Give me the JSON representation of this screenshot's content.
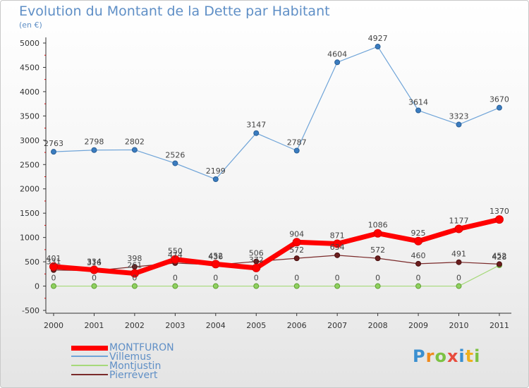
{
  "title": "Evolution du Montant de la Dette par Habitant",
  "subtitle": "(en €)",
  "logo": "Proxiti",
  "chart_data": {
    "type": "line",
    "x": [
      "2000",
      "2001",
      "2002",
      "2003",
      "2004",
      "2005",
      "2006",
      "2007",
      "2008",
      "2009",
      "2010",
      "2011"
    ],
    "ylim": [
      -500,
      5000
    ],
    "yticks": [
      -500,
      0,
      500,
      1000,
      1500,
      2000,
      2500,
      3000,
      3500,
      4000,
      4500,
      5000
    ],
    "grid": false,
    "legend_position": "bottom-left",
    "series": [
      {
        "name": "MONTFURON",
        "color": "#ff0000",
        "values": [
          401,
          334,
          261,
          550,
          452,
          372,
          904,
          871,
          1086,
          925,
          1177,
          1370
        ]
      },
      {
        "name": "Villemus",
        "color": "#6fa4d8",
        "values": [
          2763,
          2798,
          2802,
          2526,
          2199,
          3147,
          2787,
          4604,
          4927,
          3614,
          3323,
          3670
        ]
      },
      {
        "name": "Montjustin",
        "color": "#a6d97a",
        "values": [
          0,
          0,
          0,
          0,
          0,
          0,
          0,
          0,
          0,
          0,
          0,
          428
        ]
      },
      {
        "name": "Pierrevert",
        "color": "#7a2a2a",
        "values": [
          331,
          316,
          398,
          474,
          436,
          506,
          572,
          634,
          572,
          460,
          491,
          452
        ]
      }
    ]
  }
}
